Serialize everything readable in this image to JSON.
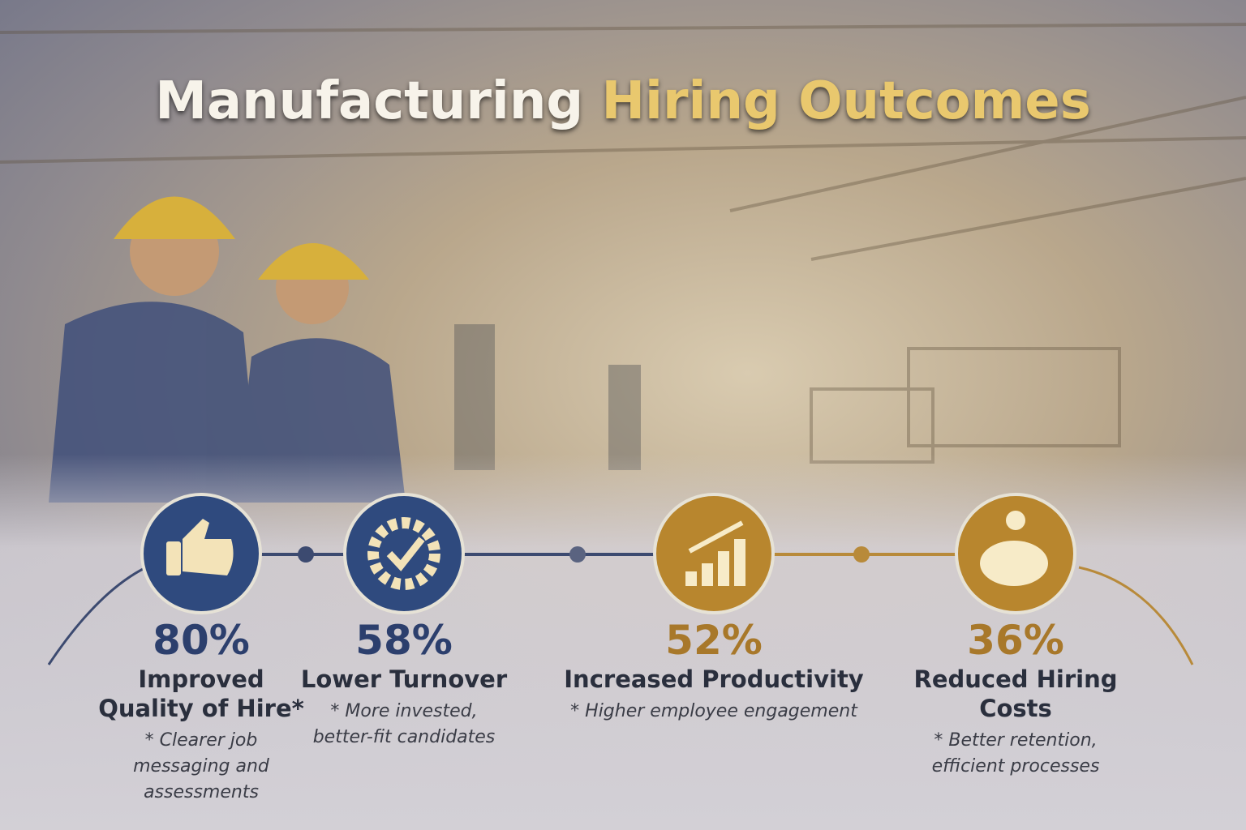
{
  "header": {
    "title_part1": "Manufacturing",
    "title_part2": "Hiring Outcomes"
  },
  "stats": [
    {
      "value": "80%",
      "label": "Improved Quality of Hire*",
      "note": "* Clearer job messaging and assessments"
    },
    {
      "value": "58%",
      "label": "Lower Turnover",
      "note": "* More invested, better-fit candidates"
    },
    {
      "value": "52%",
      "label": "Increased Productivity",
      "note": "* Higher employee engagement"
    },
    {
      "value": "36%",
      "label": "Reduced Hiring Costs",
      "note": "* Better retention, efficient processes"
    }
  ]
}
